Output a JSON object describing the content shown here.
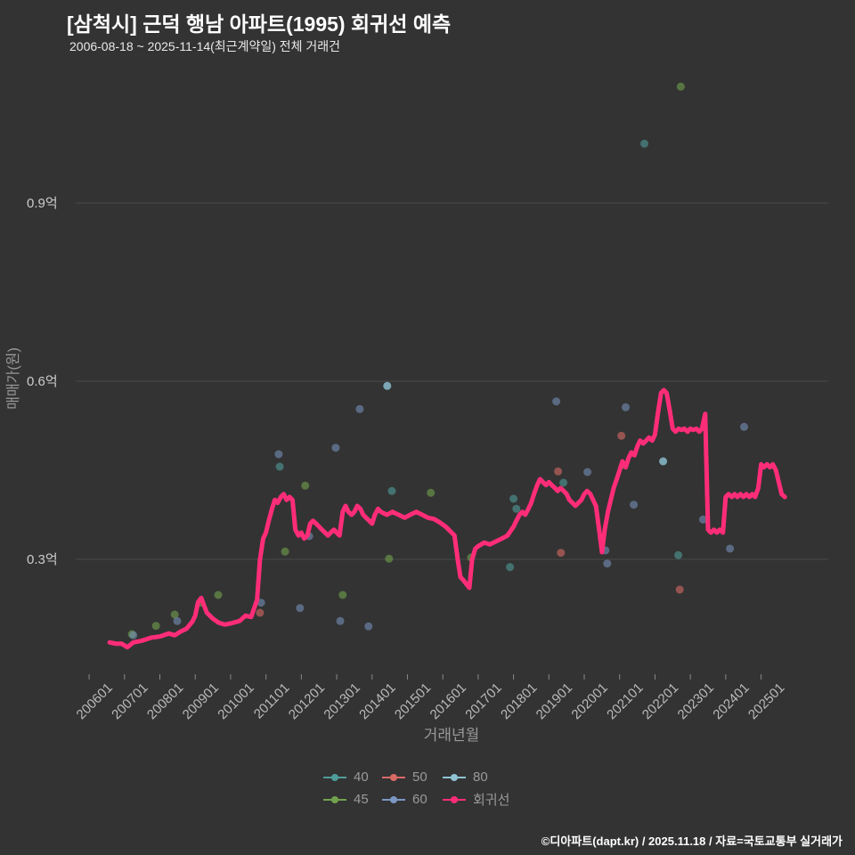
{
  "header": {
    "title": "[삼척시] 근덕 행남 아파트(1995) 회귀선 예측",
    "subtitle": "2006-08-18 ~ 2025-11-14(최근계약일) 전체 거래건"
  },
  "footer": {
    "credit": "©디아파트(dapt.kr) / 2025.11.18 / 자료=국토교통부 실거래가"
  },
  "colors": {
    "background": "#333333",
    "grid": "#4a4a4a",
    "tick_label": "#bbbbbb",
    "y_tick_label": "#cccccc",
    "axis_title": "#999999",
    "title": "#ffffff",
    "regression": "#ff2d78"
  },
  "legend": {
    "rows": [
      [
        {
          "key": "40",
          "label": "40",
          "color": "#4e9d9a"
        },
        {
          "key": "50",
          "label": "50",
          "color": "#d96a66"
        },
        {
          "key": "80",
          "label": "80",
          "color": "#8fc3d4"
        }
      ],
      [
        {
          "key": "45",
          "label": "45",
          "color": "#71a24d"
        },
        {
          "key": "60",
          "label": "60",
          "color": "#7b97c4"
        },
        {
          "key": "regression",
          "label": "회귀선",
          "color": "#ff2d78"
        }
      ]
    ]
  },
  "chart_data": {
    "type": "scatter",
    "title": "[삼척시] 근덕 행남 아파트(1995) 회귀선 예측",
    "xlabel": "거래년월",
    "ylabel": "매매가(원)",
    "y_unit": "억",
    "x_range": [
      2005.62,
      2026.9
    ],
    "y_range": [
      0.108,
      1.11
    ],
    "grid": true,
    "legend_position": "bottom",
    "y_ticks": [
      {
        "label": "0.3억",
        "value": 0.3
      },
      {
        "label": "0.6억",
        "value": 0.6
      },
      {
        "label": "0.9억",
        "value": 0.9
      }
    ],
    "x_ticks": [
      {
        "label": "200601",
        "value": 2006
      },
      {
        "label": "200701",
        "value": 2007
      },
      {
        "label": "200801",
        "value": 2008
      },
      {
        "label": "200901",
        "value": 2009
      },
      {
        "label": "201001",
        "value": 2010
      },
      {
        "label": "201101",
        "value": 2011
      },
      {
        "label": "201201",
        "value": 2012
      },
      {
        "label": "201301",
        "value": 2013
      },
      {
        "label": "201401",
        "value": 2014
      },
      {
        "label": "201501",
        "value": 2015
      },
      {
        "label": "201601",
        "value": 2016
      },
      {
        "label": "201701",
        "value": 2017
      },
      {
        "label": "201801",
        "value": 2018
      },
      {
        "label": "201901",
        "value": 2019
      },
      {
        "label": "202001",
        "value": 2020
      },
      {
        "label": "202101",
        "value": 2021
      },
      {
        "label": "202201",
        "value": 2022
      },
      {
        "label": "202301",
        "value": 2023
      },
      {
        "label": "202401",
        "value": 2024
      },
      {
        "label": "202501",
        "value": 2025
      }
    ],
    "series": [
      {
        "name": "40",
        "key": "40",
        "type": "scatter",
        "color": "#4e9d9a",
        "opacity": 0.6,
        "points": [
          [
            2011.39,
            0.456
          ],
          [
            2014.56,
            0.415
          ],
          [
            2017.9,
            0.287
          ],
          [
            2018.0,
            0.402
          ],
          [
            2018.08,
            0.385
          ],
          [
            2019.41,
            0.429
          ],
          [
            2021.7,
            1.0
          ],
          [
            2022.66,
            0.307
          ]
        ]
      },
      {
        "name": "45",
        "key": "45",
        "type": "scatter",
        "color": "#71a24d",
        "opacity": 0.6,
        "points": [
          [
            2007.21,
            0.174
          ],
          [
            2007.89,
            0.188
          ],
          [
            2008.42,
            0.207
          ],
          [
            2009.15,
            0.227
          ],
          [
            2009.65,
            0.24
          ],
          [
            2011.54,
            0.313
          ],
          [
            2012.11,
            0.424
          ],
          [
            2013.17,
            0.24
          ],
          [
            2014.48,
            0.301
          ],
          [
            2015.66,
            0.412
          ],
          [
            2016.8,
            0.303
          ],
          [
            2021.1,
            0.459
          ],
          [
            2022.73,
            1.096
          ]
        ]
      },
      {
        "name": "50",
        "key": "50",
        "type": "scatter",
        "color": "#d96a66",
        "opacity": 0.6,
        "points": [
          [
            2010.83,
            0.21
          ],
          [
            2019.26,
            0.448
          ],
          [
            2019.34,
            0.311
          ],
          [
            2021.05,
            0.508
          ],
          [
            2022.7,
            0.249
          ]
        ]
      },
      {
        "name": "60",
        "key": "60",
        "type": "scatter",
        "color": "#7b97c4",
        "opacity": 0.55,
        "points": [
          [
            2007.25,
            0.172
          ],
          [
            2008.49,
            0.196
          ],
          [
            2010.86,
            0.227
          ],
          [
            2011.36,
            0.477
          ],
          [
            2011.96,
            0.218
          ],
          [
            2012.22,
            0.339
          ],
          [
            2012.97,
            0.488
          ],
          [
            2013.1,
            0.196
          ],
          [
            2013.65,
            0.553
          ],
          [
            2013.9,
            0.187
          ],
          [
            2019.21,
            0.566
          ],
          [
            2020.09,
            0.447
          ],
          [
            2020.6,
            0.315
          ],
          [
            2020.65,
            0.293
          ],
          [
            2021.17,
            0.556
          ],
          [
            2021.4,
            0.392
          ],
          [
            2023.36,
            0.367
          ],
          [
            2024.12,
            0.318
          ],
          [
            2024.52,
            0.523
          ]
        ]
      },
      {
        "name": "80",
        "key": "80",
        "type": "scatter",
        "color": "#8fc3d4",
        "opacity": 0.8,
        "points": [
          [
            2014.43,
            0.592
          ],
          [
            2022.23,
            0.465
          ]
        ]
      },
      {
        "name": "회귀선",
        "key": "regression",
        "type": "line",
        "color": "#ff2d78",
        "width": 5,
        "points": [
          [
            2006.58,
            0.16
          ],
          [
            2006.75,
            0.158
          ],
          [
            2006.92,
            0.158
          ],
          [
            2007.08,
            0.152
          ],
          [
            2007.25,
            0.16
          ],
          [
            2007.5,
            0.163
          ],
          [
            2007.75,
            0.168
          ],
          [
            2008.0,
            0.17
          ],
          [
            2008.25,
            0.175
          ],
          [
            2008.42,
            0.172
          ],
          [
            2008.58,
            0.178
          ],
          [
            2008.75,
            0.183
          ],
          [
            2008.92,
            0.195
          ],
          [
            2009.0,
            0.205
          ],
          [
            2009.08,
            0.228
          ],
          [
            2009.17,
            0.235
          ],
          [
            2009.25,
            0.222
          ],
          [
            2009.33,
            0.21
          ],
          [
            2009.5,
            0.2
          ],
          [
            2009.67,
            0.193
          ],
          [
            2009.83,
            0.19
          ],
          [
            2010.0,
            0.192
          ],
          [
            2010.25,
            0.196
          ],
          [
            2010.42,
            0.205
          ],
          [
            2010.58,
            0.203
          ],
          [
            2010.75,
            0.232
          ],
          [
            2010.83,
            0.3
          ],
          [
            2010.92,
            0.335
          ],
          [
            2011.0,
            0.345
          ],
          [
            2011.08,
            0.365
          ],
          [
            2011.17,
            0.385
          ],
          [
            2011.25,
            0.4
          ],
          [
            2011.33,
            0.395
          ],
          [
            2011.42,
            0.405
          ],
          [
            2011.5,
            0.41
          ],
          [
            2011.58,
            0.4
          ],
          [
            2011.67,
            0.405
          ],
          [
            2011.75,
            0.4
          ],
          [
            2011.83,
            0.35
          ],
          [
            2011.92,
            0.34
          ],
          [
            2012.0,
            0.345
          ],
          [
            2012.08,
            0.335
          ],
          [
            2012.17,
            0.34
          ],
          [
            2012.25,
            0.36
          ],
          [
            2012.33,
            0.365
          ],
          [
            2012.42,
            0.36
          ],
          [
            2012.5,
            0.355
          ],
          [
            2012.58,
            0.35
          ],
          [
            2012.67,
            0.345
          ],
          [
            2012.75,
            0.34
          ],
          [
            2012.83,
            0.345
          ],
          [
            2012.92,
            0.35
          ],
          [
            2013.0,
            0.345
          ],
          [
            2013.08,
            0.34
          ],
          [
            2013.17,
            0.38
          ],
          [
            2013.25,
            0.39
          ],
          [
            2013.33,
            0.38
          ],
          [
            2013.42,
            0.375
          ],
          [
            2013.5,
            0.38
          ],
          [
            2013.58,
            0.39
          ],
          [
            2013.67,
            0.385
          ],
          [
            2013.75,
            0.375
          ],
          [
            2013.83,
            0.37
          ],
          [
            2013.92,
            0.365
          ],
          [
            2014.0,
            0.36
          ],
          [
            2014.08,
            0.375
          ],
          [
            2014.17,
            0.385
          ],
          [
            2014.25,
            0.38
          ],
          [
            2014.42,
            0.375
          ],
          [
            2014.58,
            0.38
          ],
          [
            2014.75,
            0.375
          ],
          [
            2014.92,
            0.37
          ],
          [
            2015.08,
            0.375
          ],
          [
            2015.25,
            0.38
          ],
          [
            2015.42,
            0.375
          ],
          [
            2015.58,
            0.37
          ],
          [
            2015.75,
            0.368
          ],
          [
            2015.92,
            0.362
          ],
          [
            2016.08,
            0.355
          ],
          [
            2016.25,
            0.345
          ],
          [
            2016.33,
            0.34
          ],
          [
            2016.42,
            0.3
          ],
          [
            2016.5,
            0.27
          ],
          [
            2016.58,
            0.265
          ],
          [
            2016.67,
            0.258
          ],
          [
            2016.75,
            0.252
          ],
          [
            2016.83,
            0.3
          ],
          [
            2016.92,
            0.318
          ],
          [
            2017.0,
            0.322
          ],
          [
            2017.17,
            0.328
          ],
          [
            2017.33,
            0.325
          ],
          [
            2017.5,
            0.33
          ],
          [
            2017.67,
            0.335
          ],
          [
            2017.83,
            0.34
          ],
          [
            2018.0,
            0.355
          ],
          [
            2018.08,
            0.365
          ],
          [
            2018.17,
            0.375
          ],
          [
            2018.25,
            0.38
          ],
          [
            2018.33,
            0.375
          ],
          [
            2018.42,
            0.385
          ],
          [
            2018.5,
            0.395
          ],
          [
            2018.58,
            0.41
          ],
          [
            2018.67,
            0.425
          ],
          [
            2018.75,
            0.435
          ],
          [
            2018.83,
            0.43
          ],
          [
            2018.92,
            0.425
          ],
          [
            2019.0,
            0.43
          ],
          [
            2019.08,
            0.425
          ],
          [
            2019.17,
            0.42
          ],
          [
            2019.25,
            0.415
          ],
          [
            2019.33,
            0.42
          ],
          [
            2019.42,
            0.415
          ],
          [
            2019.5,
            0.41
          ],
          [
            2019.58,
            0.4
          ],
          [
            2019.67,
            0.395
          ],
          [
            2019.75,
            0.39
          ],
          [
            2019.83,
            0.395
          ],
          [
            2019.92,
            0.4
          ],
          [
            2020.0,
            0.41
          ],
          [
            2020.08,
            0.415
          ],
          [
            2020.17,
            0.41
          ],
          [
            2020.25,
            0.4
          ],
          [
            2020.33,
            0.39
          ],
          [
            2020.42,
            0.35
          ],
          [
            2020.5,
            0.312
          ],
          [
            2020.58,
            0.35
          ],
          [
            2020.67,
            0.38
          ],
          [
            2020.75,
            0.4
          ],
          [
            2020.83,
            0.42
          ],
          [
            2020.92,
            0.435
          ],
          [
            2021.0,
            0.45
          ],
          [
            2021.08,
            0.465
          ],
          [
            2021.17,
            0.455
          ],
          [
            2021.25,
            0.47
          ],
          [
            2021.33,
            0.48
          ],
          [
            2021.42,
            0.475
          ],
          [
            2021.5,
            0.49
          ],
          [
            2021.58,
            0.5
          ],
          [
            2021.67,
            0.495
          ],
          [
            2021.75,
            0.5
          ],
          [
            2021.83,
            0.505
          ],
          [
            2021.92,
            0.5
          ],
          [
            2022.0,
            0.51
          ],
          [
            2022.08,
            0.545
          ],
          [
            2022.17,
            0.58
          ],
          [
            2022.25,
            0.585
          ],
          [
            2022.33,
            0.58
          ],
          [
            2022.42,
            0.55
          ],
          [
            2022.5,
            0.52
          ],
          [
            2022.58,
            0.515
          ],
          [
            2022.67,
            0.52
          ],
          [
            2022.75,
            0.518
          ],
          [
            2022.83,
            0.52
          ],
          [
            2022.92,
            0.515
          ],
          [
            2023.0,
            0.52
          ],
          [
            2023.08,
            0.518
          ],
          [
            2023.17,
            0.52
          ],
          [
            2023.25,
            0.515
          ],
          [
            2023.33,
            0.52
          ],
          [
            2023.42,
            0.545
          ],
          [
            2023.5,
            0.35
          ],
          [
            2023.58,
            0.345
          ],
          [
            2023.67,
            0.35
          ],
          [
            2023.75,
            0.345
          ],
          [
            2023.83,
            0.35
          ],
          [
            2023.92,
            0.345
          ],
          [
            2024.0,
            0.405
          ],
          [
            2024.08,
            0.41
          ],
          [
            2024.17,
            0.405
          ],
          [
            2024.25,
            0.41
          ],
          [
            2024.33,
            0.405
          ],
          [
            2024.42,
            0.41
          ],
          [
            2024.5,
            0.405
          ],
          [
            2024.58,
            0.41
          ],
          [
            2024.67,
            0.405
          ],
          [
            2024.75,
            0.41
          ],
          [
            2024.83,
            0.405
          ],
          [
            2024.92,
            0.42
          ],
          [
            2025.0,
            0.46
          ],
          [
            2025.08,
            0.455
          ],
          [
            2025.17,
            0.46
          ],
          [
            2025.25,
            0.455
          ],
          [
            2025.33,
            0.46
          ],
          [
            2025.42,
            0.45
          ],
          [
            2025.5,
            0.43
          ],
          [
            2025.58,
            0.41
          ],
          [
            2025.67,
            0.405
          ]
        ]
      }
    ]
  }
}
